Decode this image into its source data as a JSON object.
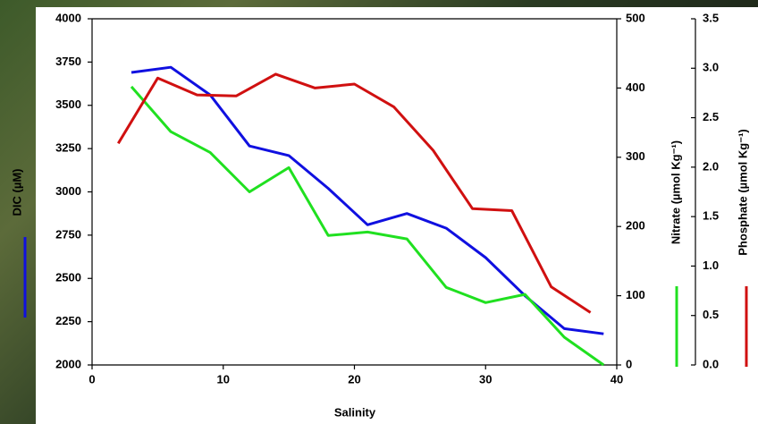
{
  "chart_data": {
    "type": "line",
    "x_label": "Salinity",
    "y_label": "DIC (µM)",
    "y2_label": "Nitrate (µmol Kg⁻¹)",
    "y3_label": "Phosphate (µmol Kg⁻¹)",
    "xlim": [
      0,
      40
    ],
    "xticks": [
      0,
      10,
      20,
      30,
      40
    ],
    "ylim": [
      2000,
      4000
    ],
    "yticks": [
      2000,
      2250,
      2500,
      2750,
      3000,
      3250,
      3500,
      3750,
      4000
    ],
    "y2lim": [
      0,
      500
    ],
    "y2ticks": [
      0,
      100,
      200,
      300,
      400,
      500
    ],
    "y3lim": [
      0,
      3.5
    ],
    "y3ticks": [
      {
        "value": 0,
        "label": "0.0"
      },
      0.5,
      {
        "value": 1,
        "label": "1.0"
      },
      1.5,
      {
        "value": 2,
        "label": "2.0"
      },
      2.5,
      {
        "value": 3,
        "label": "3.0"
      },
      3.5
    ],
    "series": [
      {
        "color": "#1010e0",
        "axis": "y",
        "x": [
          3,
          6,
          9,
          12,
          15,
          18,
          21,
          24,
          27,
          30,
          33,
          36,
          39
        ],
        "values": [
          3690,
          3720,
          3560,
          3265,
          3210,
          3020,
          2810,
          2875,
          2790,
          2620,
          2400,
          2210,
          2180
        ]
      },
      {
        "color": "#20e020",
        "axis": "y2",
        "x": [
          3,
          6,
          9,
          12,
          15,
          18,
          21,
          24,
          27,
          30,
          33,
          36,
          39
        ],
        "values": [
          402,
          337,
          307,
          250,
          285,
          187,
          192,
          182,
          112,
          90,
          102,
          40,
          0
        ]
      },
      {
        "color": "#d01010",
        "axis": "y3",
        "x": [
          2,
          5,
          8,
          11,
          14,
          17,
          20,
          23,
          26,
          29,
          32,
          35,
          38
        ],
        "values": [
          2.24,
          2.9,
          2.73,
          2.72,
          2.94,
          2.8,
          2.84,
          2.61,
          2.17,
          1.58,
          1.56,
          0.79,
          0.53
        ]
      }
    ]
  }
}
